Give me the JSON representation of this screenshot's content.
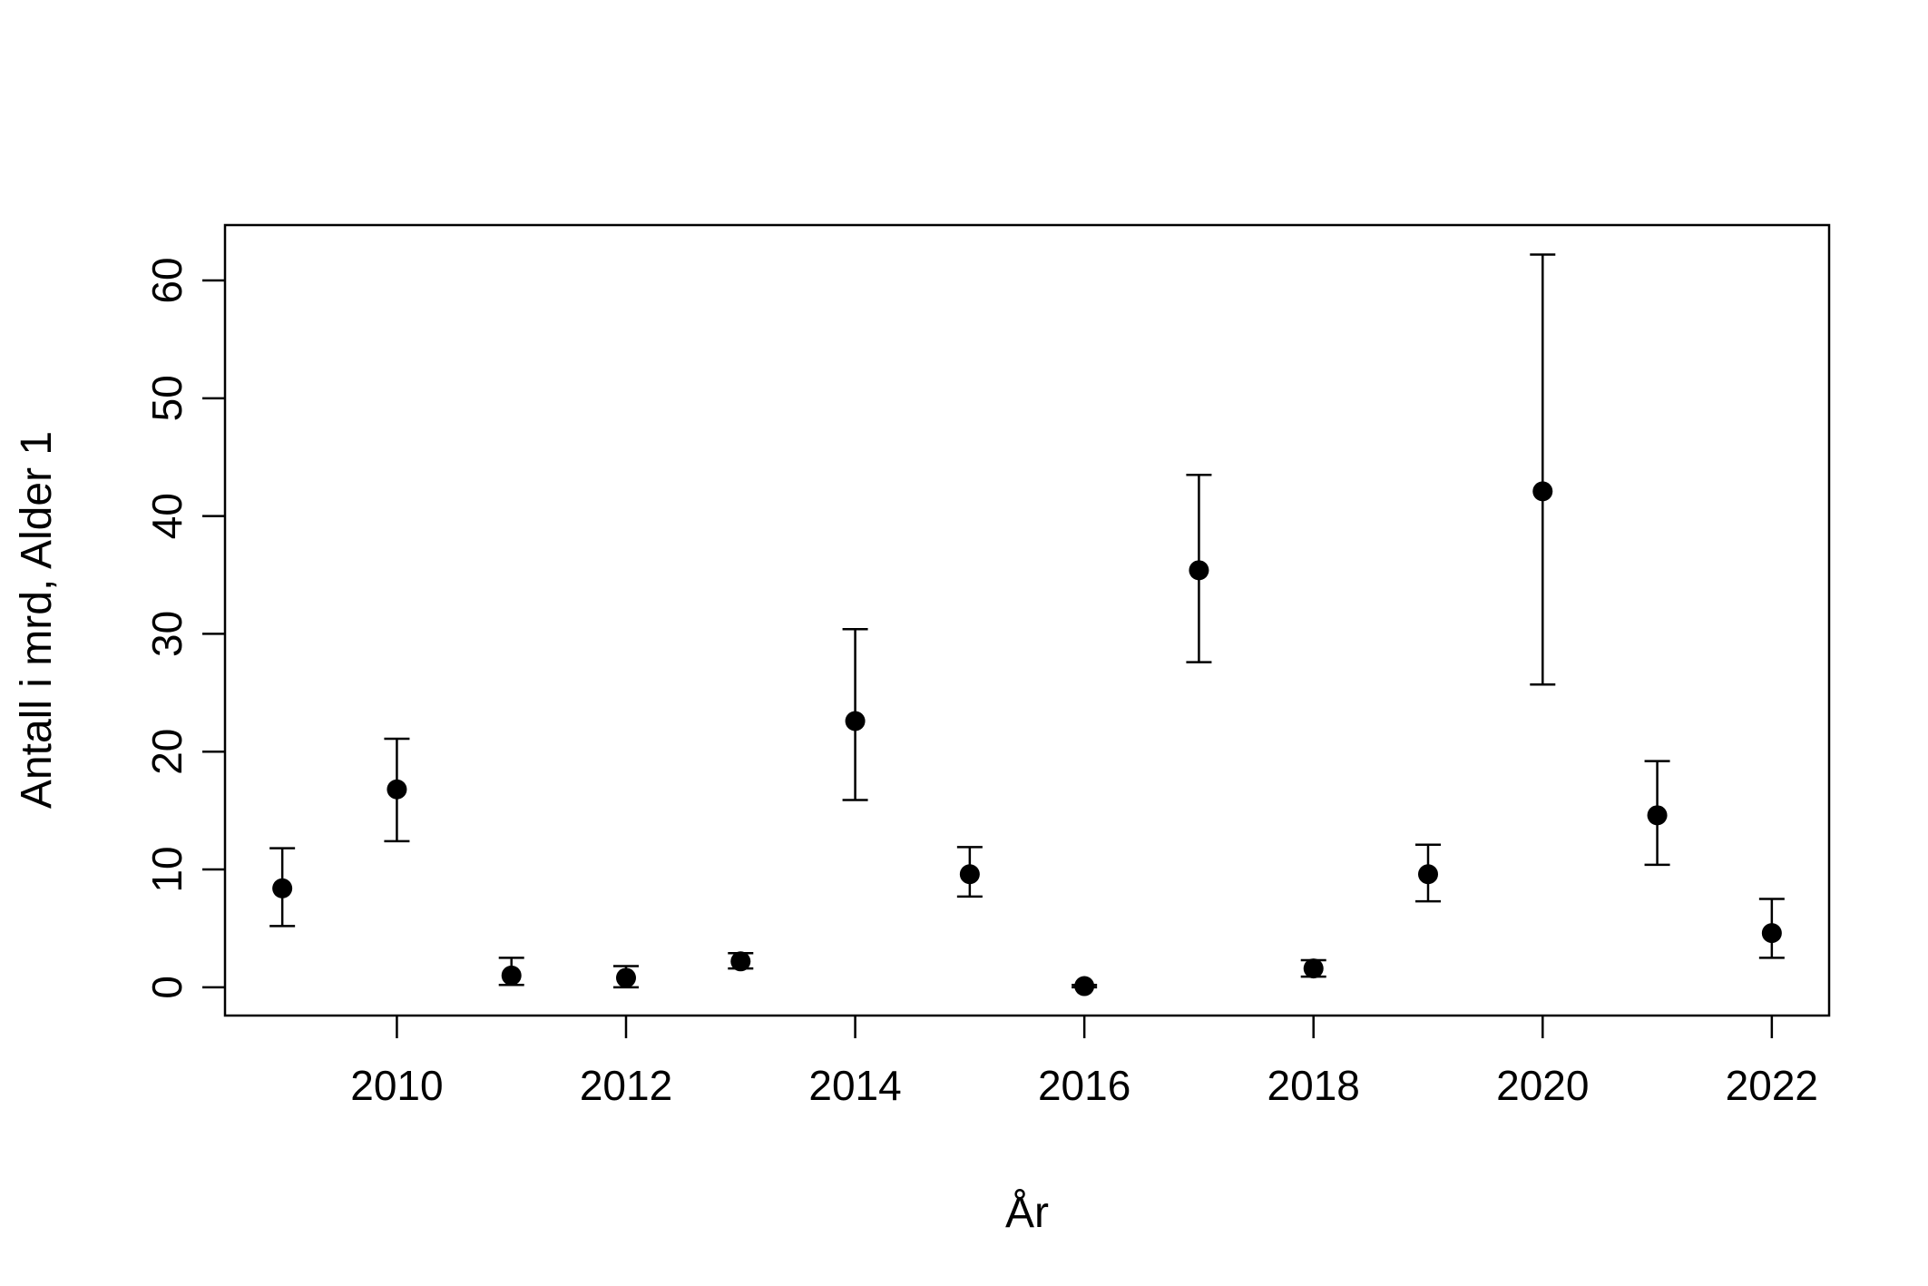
{
  "chart_data": {
    "type": "scatter",
    "title": "",
    "xlabel": "År",
    "ylabel": "Antall i mrd, Alder 1",
    "xlim": [
      2008.5,
      2022.5
    ],
    "ylim": [
      -2.4,
      64.7
    ],
    "x_ticks": [
      2010,
      2012,
      2014,
      2016,
      2018,
      2020,
      2022
    ],
    "y_ticks": [
      0,
      10,
      20,
      30,
      40,
      50,
      60
    ],
    "grid": false,
    "legend": "none",
    "colors": {
      "points": "#000000",
      "axes": "#000000",
      "background": "#ffffff"
    },
    "series": [
      {
        "x": [
          2009,
          2010,
          2011,
          2012,
          2013,
          2014,
          2015,
          2016,
          2017,
          2018,
          2019,
          2020,
          2021,
          2022
        ],
        "y": [
          8.4,
          16.8,
          1.0,
          0.8,
          2.2,
          22.6,
          9.6,
          0.1,
          35.4,
          1.6,
          9.6,
          42.1,
          14.6,
          4.6
        ],
        "lower": [
          5.2,
          12.4,
          0.2,
          0.0,
          1.6,
          15.9,
          7.7,
          0.0,
          27.6,
          0.9,
          7.3,
          25.7,
          10.4,
          2.5
        ],
        "upper": [
          11.8,
          21.1,
          2.5,
          1.8,
          2.9,
          30.4,
          11.9,
          0.2,
          43.5,
          2.3,
          12.1,
          62.2,
          19.2,
          7.5
        ]
      }
    ]
  }
}
